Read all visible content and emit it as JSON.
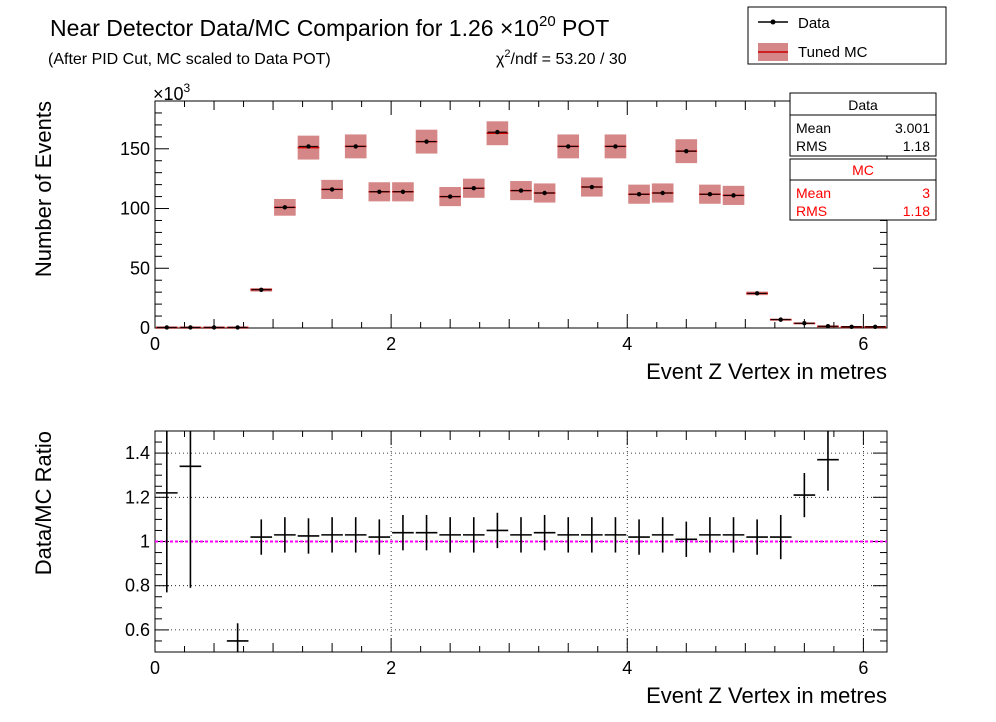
{
  "title": {
    "main": "Near Detector Data/MC Comparion for 1.26 ×10",
    "exponent": "20",
    "suffix": " POT",
    "subtitle": "(After PID Cut, MC scaled to Data POT)",
    "chi2_prefix": "χ",
    "chi2_exp": "2",
    "chi2_rest": "/ndf = 53.20 / 30"
  },
  "legend": {
    "data_label": "Data",
    "mc_label": "Tuned MC"
  },
  "stats": {
    "data": {
      "title": "Data",
      "mean_label": "Mean",
      "mean_value": "3.001",
      "rms_label": "RMS",
      "rms_value": "1.18"
    },
    "mc": {
      "title": "MC",
      "mean_label": "Mean",
      "mean_value": "3",
      "rms_label": "RMS",
      "rms_value": "1.18"
    }
  },
  "colors": {
    "data": "#000000",
    "mc_line": "#cc0000",
    "mc_band": "#b22222",
    "ratio_ref": "#ff00ff",
    "stat_mc": "#ff0000"
  },
  "chart_data": [
    {
      "type": "line",
      "name": "top-panel",
      "xlabel": "Event Z Vertex in metres",
      "ylabel": "Number of Events",
      "y_multiplier": "×10",
      "y_multiplier_exp": "3",
      "xlim": [
        0,
        6.2
      ],
      "ylim": [
        0,
        190
      ],
      "x_ticks": [
        0,
        2,
        4,
        6
      ],
      "y_ticks": [
        0,
        50,
        100,
        150
      ],
      "bin_width": 0.2,
      "x": [
        0.1,
        0.3,
        0.5,
        0.7,
        0.9,
        1.1,
        1.3,
        1.5,
        1.7,
        1.9,
        2.1,
        2.3,
        2.5,
        2.7,
        2.9,
        3.1,
        3.3,
        3.5,
        3.7,
        3.9,
        4.1,
        4.3,
        4.5,
        4.7,
        4.9,
        5.1,
        5.3,
        5.5,
        5.7,
        5.9,
        6.1
      ],
      "series": [
        {
          "name": "Tuned MC",
          "values": [
            0.5,
            0.5,
            0.5,
            0.5,
            32,
            101,
            151,
            116,
            152,
            114,
            114,
            156,
            110,
            117,
            163,
            115,
            113,
            152,
            118,
            152,
            112,
            113,
            148,
            112,
            111,
            29,
            7,
            4,
            1.5,
            1,
            1
          ],
          "band_half_height": [
            0.5,
            0.5,
            0.5,
            0.5,
            1.5,
            7,
            10,
            8,
            10,
            8,
            8,
            10,
            8,
            8,
            10,
            8,
            8,
            10,
            8,
            10,
            8,
            8,
            10,
            8,
            8,
            1.5,
            0.8,
            0.6,
            0.4,
            0.3,
            0.3
          ]
        },
        {
          "name": "Data",
          "values": [
            0.5,
            0.5,
            0.5,
            0.5,
            32,
            101,
            152,
            116,
            152,
            114,
            114,
            156,
            110,
            117,
            164,
            115,
            113,
            152,
            118,
            152,
            112,
            113,
            148,
            112,
            111,
            29,
            7,
            4,
            1.5,
            1,
            1
          ]
        }
      ]
    },
    {
      "type": "line",
      "name": "ratio-panel",
      "xlabel": "Event Z Vertex in metres",
      "ylabel": "Data/MC Ratio",
      "xlim": [
        0,
        6.2
      ],
      "ylim": [
        0.5,
        1.5
      ],
      "x_ticks": [
        0,
        2,
        4,
        6
      ],
      "y_ticks": [
        0.6,
        0.8,
        1,
        1.2,
        1.4
      ],
      "reference_line": 1,
      "grid": true,
      "bin_width": 0.2,
      "points": [
        {
          "x": 0.1,
          "y": 1.22,
          "err": 0.45
        },
        {
          "x": 0.3,
          "y": 1.34,
          "err": 0.55
        },
        {
          "x": 0.7,
          "y": 0.55,
          "err": 0.08
        },
        {
          "x": 0.9,
          "y": 1.02,
          "err": 0.08
        },
        {
          "x": 1.1,
          "y": 1.03,
          "err": 0.08
        },
        {
          "x": 1.3,
          "y": 1.025,
          "err": 0.08
        },
        {
          "x": 1.5,
          "y": 1.03,
          "err": 0.08
        },
        {
          "x": 1.7,
          "y": 1.03,
          "err": 0.08
        },
        {
          "x": 1.9,
          "y": 1.02,
          "err": 0.08
        },
        {
          "x": 2.1,
          "y": 1.04,
          "err": 0.08
        },
        {
          "x": 2.3,
          "y": 1.04,
          "err": 0.08
        },
        {
          "x": 2.5,
          "y": 1.03,
          "err": 0.08
        },
        {
          "x": 2.7,
          "y": 1.03,
          "err": 0.08
        },
        {
          "x": 2.9,
          "y": 1.05,
          "err": 0.08
        },
        {
          "x": 3.1,
          "y": 1.03,
          "err": 0.08
        },
        {
          "x": 3.3,
          "y": 1.04,
          "err": 0.08
        },
        {
          "x": 3.5,
          "y": 1.03,
          "err": 0.08
        },
        {
          "x": 3.7,
          "y": 1.03,
          "err": 0.08
        },
        {
          "x": 3.9,
          "y": 1.03,
          "err": 0.08
        },
        {
          "x": 4.1,
          "y": 1.02,
          "err": 0.08
        },
        {
          "x": 4.3,
          "y": 1.03,
          "err": 0.08
        },
        {
          "x": 4.5,
          "y": 1.01,
          "err": 0.08
        },
        {
          "x": 4.7,
          "y": 1.03,
          "err": 0.08
        },
        {
          "x": 4.9,
          "y": 1.03,
          "err": 0.08
        },
        {
          "x": 5.1,
          "y": 1.02,
          "err": 0.08
        },
        {
          "x": 5.3,
          "y": 1.02,
          "err": 0.1
        },
        {
          "x": 5.5,
          "y": 1.21,
          "err": 0.1
        },
        {
          "x": 5.7,
          "y": 1.37,
          "err": 0.14
        }
      ]
    }
  ]
}
